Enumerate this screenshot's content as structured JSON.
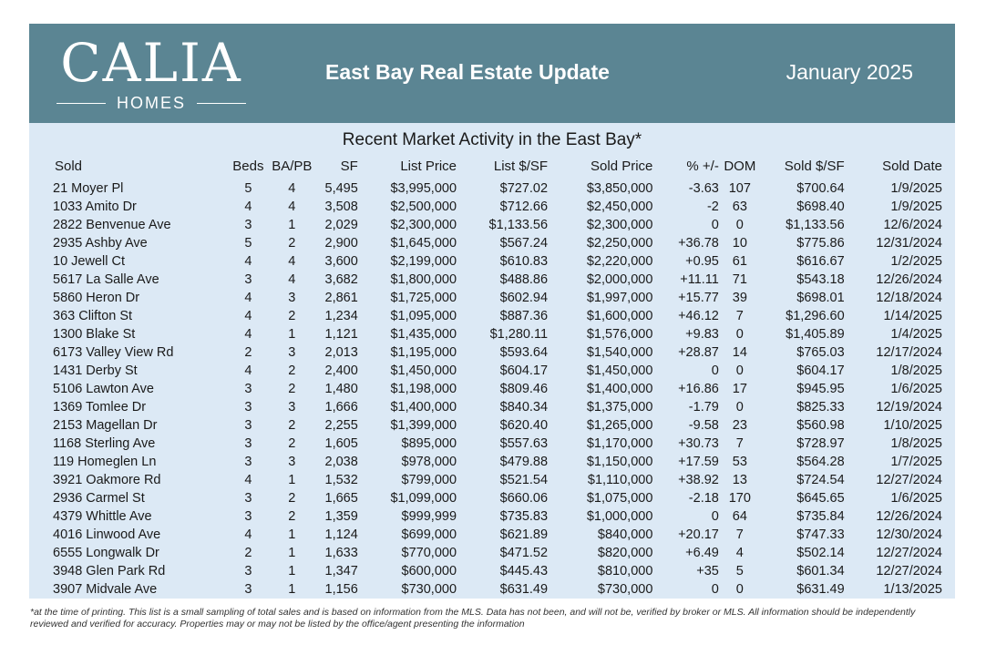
{
  "header": {
    "logo_main": "CALIA",
    "logo_sub": "HOMES",
    "title": "East Bay Real Estate Update",
    "date": "January 2025"
  },
  "table": {
    "title": "Recent Market Activity in the East Bay*",
    "columns": [
      "Sold",
      "Beds",
      "BA/PB",
      "SF",
      "List Price",
      "List $/SF",
      "Sold Price",
      "% +/-",
      "DOM",
      "Sold $/SF",
      "Sold Date"
    ],
    "rows": [
      [
        "21 Moyer Pl",
        "5",
        "4",
        "5,495",
        "$3,995,000",
        "$727.02",
        "$3,850,000",
        "-3.63",
        "107",
        "$700.64",
        "1/9/2025"
      ],
      [
        "1033 Amito Dr",
        "4",
        "4",
        "3,508",
        "$2,500,000",
        "$712.66",
        "$2,450,000",
        "-2",
        "63",
        "$698.40",
        "1/9/2025"
      ],
      [
        "2822 Benvenue Ave",
        "3",
        "1",
        "2,029",
        "$2,300,000",
        "$1,133.56",
        "$2,300,000",
        "0",
        "0",
        "$1,133.56",
        "12/6/2024"
      ],
      [
        "2935 Ashby Ave",
        "5",
        "2",
        "2,900",
        "$1,645,000",
        "$567.24",
        "$2,250,000",
        "+36.78",
        "10",
        "$775.86",
        "12/31/2024"
      ],
      [
        "10 Jewell Ct",
        "4",
        "4",
        "3,600",
        "$2,199,000",
        "$610.83",
        "$2,220,000",
        "+0.95",
        "61",
        "$616.67",
        "1/2/2025"
      ],
      [
        "5617 La Salle Ave",
        "3",
        "4",
        "3,682",
        "$1,800,000",
        "$488.86",
        "$2,000,000",
        "+11.11",
        "71",
        "$543.18",
        "12/26/2024"
      ],
      [
        "5860 Heron Dr",
        "4",
        "3",
        "2,861",
        "$1,725,000",
        "$602.94",
        "$1,997,000",
        "+15.77",
        "39",
        "$698.01",
        "12/18/2024"
      ],
      [
        "363 Clifton St",
        "4",
        "2",
        "1,234",
        "$1,095,000",
        "$887.36",
        "$1,600,000",
        "+46.12",
        "7",
        "$1,296.60",
        "1/14/2025"
      ],
      [
        "1300 Blake St",
        "4",
        "1",
        "1,121",
        "$1,435,000",
        "$1,280.11",
        "$1,576,000",
        "+9.83",
        "0",
        "$1,405.89",
        "1/4/2025"
      ],
      [
        "6173 Valley View Rd",
        "2",
        "3",
        "2,013",
        "$1,195,000",
        "$593.64",
        "$1,540,000",
        "+28.87",
        "14",
        "$765.03",
        "12/17/2024"
      ],
      [
        "1431 Derby St",
        "4",
        "2",
        "2,400",
        "$1,450,000",
        "$604.17",
        "$1,450,000",
        "0",
        "0",
        "$604.17",
        "1/8/2025"
      ],
      [
        "5106 Lawton Ave",
        "3",
        "2",
        "1,480",
        "$1,198,000",
        "$809.46",
        "$1,400,000",
        "+16.86",
        "17",
        "$945.95",
        "1/6/2025"
      ],
      [
        "1369 Tomlee Dr",
        "3",
        "3",
        "1,666",
        "$1,400,000",
        "$840.34",
        "$1,375,000",
        "-1.79",
        "0",
        "$825.33",
        "12/19/2024"
      ],
      [
        "2153 Magellan Dr",
        "3",
        "2",
        "2,255",
        "$1,399,000",
        "$620.40",
        "$1,265,000",
        "-9.58",
        "23",
        "$560.98",
        "1/10/2025"
      ],
      [
        "1168 Sterling Ave",
        "3",
        "2",
        "1,605",
        "$895,000",
        "$557.63",
        "$1,170,000",
        "+30.73",
        "7",
        "$728.97",
        "1/8/2025"
      ],
      [
        "119 Homeglen Ln",
        "3",
        "3",
        "2,038",
        "$978,000",
        "$479.88",
        "$1,150,000",
        "+17.59",
        "53",
        "$564.28",
        "1/7/2025"
      ],
      [
        "3921 Oakmore Rd",
        "4",
        "1",
        "1,532",
        "$799,000",
        "$521.54",
        "$1,110,000",
        "+38.92",
        "13",
        "$724.54",
        "12/27/2024"
      ],
      [
        "2936 Carmel St",
        "3",
        "2",
        "1,665",
        "$1,099,000",
        "$660.06",
        "$1,075,000",
        "-2.18",
        "170",
        "$645.65",
        "1/6/2025"
      ],
      [
        "4379 Whittle Ave",
        "3",
        "2",
        "1,359",
        "$999,999",
        "$735.83",
        "$1,000,000",
        "0",
        "64",
        "$735.84",
        "12/26/2024"
      ],
      [
        "4016 Linwood Ave",
        "4",
        "1",
        "1,124",
        "$699,000",
        "$621.89",
        "$840,000",
        "+20.17",
        "7",
        "$747.33",
        "12/30/2024"
      ],
      [
        "6555 Longwalk Dr",
        "2",
        "1",
        "1,633",
        "$770,000",
        "$471.52",
        "$820,000",
        "+6.49",
        "4",
        "$502.14",
        "12/27/2024"
      ],
      [
        "3948 Glen Park Rd",
        "3",
        "1",
        "1,347",
        "$600,000",
        "$445.43",
        "$810,000",
        "+35",
        "5",
        "$601.34",
        "12/27/2024"
      ],
      [
        "3907 Midvale Ave",
        "3",
        "1",
        "1,156",
        "$730,000",
        "$631.49",
        "$730,000",
        "0",
        "0",
        "$631.49",
        "1/13/2025"
      ]
    ]
  },
  "footnote": "*at the time of printing. This list is a small sampling of total sales and is based on information from the MLS. Data has not been, and will not be, verified by broker or MLS. All information should be independently reviewed and verified for accuracy. Properties may or may not be listed by the office/agent presenting the information",
  "colors": {
    "header_bg": "#5b8593",
    "panel_bg": "#dce9f5",
    "text": "#1a1a1a"
  }
}
